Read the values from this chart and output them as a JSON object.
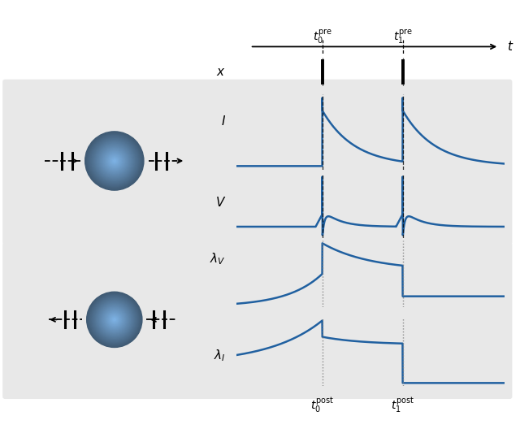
{
  "bg_color": "#e8e8e8",
  "white_bg": "#ffffff",
  "blue_grad_outer": "#5bb8e8",
  "blue_grad_inner": "#a0d8f0",
  "line_color": "#2060a0",
  "t0_pre": 0.32,
  "t1_pre": 0.62,
  "fig_width": 6.4,
  "fig_height": 5.28,
  "label_fontsize": 11,
  "tick_fontsize": 10
}
